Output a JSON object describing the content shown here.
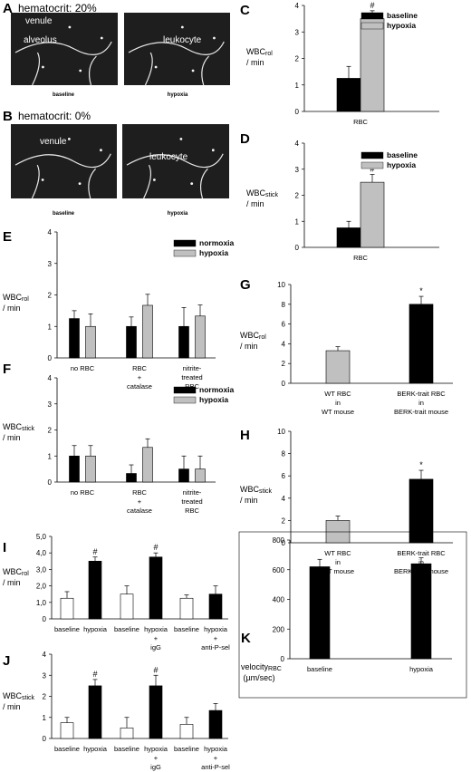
{
  "colors": {
    "black": "#000000",
    "gray": "#c0c0c0",
    "white": "#ffffff",
    "micro": "#1e1e1e"
  },
  "micrographs": [
    {
      "panel": "A",
      "title": "hematocrit: 20%",
      "images": [
        {
          "labels": [
            "venule",
            "alveolus"
          ],
          "caption": "baseline"
        },
        {
          "labels": [
            "leukocyte"
          ],
          "caption": "hypoxia"
        }
      ]
    },
    {
      "panel": "B",
      "title": "hematocrit: 0%",
      "images": [
        {
          "labels": [
            "venule"
          ],
          "caption": "baseline"
        },
        {
          "labels": [
            "leukocyte"
          ],
          "caption": "hypoxia"
        }
      ]
    }
  ],
  "chart_data": [
    {
      "panel": "C",
      "type": "bar",
      "ylabel": "WBCrol / min",
      "ylabel_main": "WBC",
      "ylabel_sub": "rol",
      "ylabel_tail": "/ min",
      "ylim": [
        0,
        4
      ],
      "yticks": [
        "0",
        "1",
        "2",
        "3",
        "4"
      ],
      "categories": [
        "RBC"
      ],
      "series": [
        {
          "name": "baseline",
          "color": "#000000",
          "values": [
            1.25
          ],
          "errors": [
            0.45
          ],
          "marks": [
            ""
          ]
        },
        {
          "name": "hypoxia",
          "color": "#c0c0c0",
          "values": [
            3.5
          ],
          "errors": [
            0.3
          ],
          "marks": [
            "#"
          ]
        }
      ],
      "legend": "top-right"
    },
    {
      "panel": "D",
      "type": "bar",
      "ylabel": "WBCstick / min",
      "ylabel_main": "WBC",
      "ylabel_sub": "stick",
      "ylabel_tail": "/ min",
      "ylim": [
        0,
        4
      ],
      "yticks": [
        "0",
        "1",
        "2",
        "3",
        "4"
      ],
      "categories": [
        "RBC"
      ],
      "series": [
        {
          "name": "baseline",
          "color": "#000000",
          "values": [
            0.75
          ],
          "errors": [
            0.25
          ],
          "marks": [
            ""
          ]
        },
        {
          "name": "hypoxia",
          "color": "#c0c0c0",
          "values": [
            2.5
          ],
          "errors": [
            0.3
          ],
          "marks": [
            "#"
          ]
        }
      ],
      "legend": "top-right"
    },
    {
      "panel": "E",
      "type": "bar",
      "ylabel": "WBCrol / min",
      "ylabel_main": "WBC",
      "ylabel_sub": "rol",
      "ylabel_tail": "/ min",
      "ylim": [
        0,
        4
      ],
      "yticks": [
        "0",
        "1",
        "2",
        "3",
        "4"
      ],
      "categories": [
        [
          "no RBC"
        ],
        [
          "RBC",
          "+",
          "catalase"
        ],
        [
          "nitrite-",
          "treated",
          "RBC"
        ]
      ],
      "series": [
        {
          "name": "normoxia",
          "color": "#000000",
          "values": [
            1.25,
            1.0,
            1.0
          ],
          "errors": [
            0.25,
            0.3,
            0.6
          ],
          "marks": [
            "",
            "",
            ""
          ]
        },
        {
          "name": "hypoxia",
          "color": "#c0c0c0",
          "values": [
            1.0,
            1.67,
            1.33
          ],
          "errors": [
            0.4,
            0.35,
            0.35
          ],
          "marks": [
            "",
            "",
            ""
          ]
        }
      ],
      "legend": "top-right"
    },
    {
      "panel": "F",
      "type": "bar",
      "ylabel": "WBCstick / min",
      "ylabel_main": "WBC",
      "ylabel_sub": "stick",
      "ylabel_tail": "/ min",
      "ylim": [
        0,
        4
      ],
      "yticks": [
        "0",
        "1",
        "2",
        "3",
        "4"
      ],
      "categories": [
        [
          "no RBC"
        ],
        [
          "RBC",
          "+",
          "catalase"
        ],
        [
          "nitrite-",
          "treated",
          "RBC"
        ]
      ],
      "series": [
        {
          "name": "normoxia",
          "color": "#000000",
          "values": [
            1.0,
            0.33,
            0.5
          ],
          "errors": [
            0.4,
            0.33,
            0.5
          ],
          "marks": [
            "",
            "",
            ""
          ]
        },
        {
          "name": "hypoxia",
          "color": "#c0c0c0",
          "values": [
            1.0,
            1.33,
            0.5
          ],
          "errors": [
            0.4,
            0.33,
            0.5
          ],
          "marks": [
            "",
            "",
            ""
          ]
        }
      ],
      "legend": "top-right"
    },
    {
      "panel": "G",
      "type": "bar",
      "ylabel": "WBCrol / min",
      "ylabel_main": "WBC",
      "ylabel_sub": "rol",
      "ylabel_tail": "/ min",
      "ylim": [
        0,
        10
      ],
      "yticks": [
        "0",
        "2",
        "4",
        "6",
        "8",
        "10"
      ],
      "categories": [
        [
          "WT RBC",
          "in",
          "WT mouse"
        ],
        [
          "BERK-trait RBC",
          "in",
          "BERK-trait mouse"
        ]
      ],
      "bars": [
        {
          "value": 3.3,
          "error": 0.4,
          "color": "#c0c0c0",
          "mark": ""
        },
        {
          "value": 8.0,
          "error": 0.8,
          "color": "#000000",
          "mark": "*"
        }
      ]
    },
    {
      "panel": "H",
      "type": "bar",
      "ylabel": "WBCstick / min",
      "ylabel_main": "WBC",
      "ylabel_sub": "stick",
      "ylabel_tail": "/ min",
      "ylim": [
        0,
        10
      ],
      "yticks": [
        "0",
        "2",
        "4",
        "6",
        "8",
        "10"
      ],
      "categories": [
        [
          "WT RBC",
          "in",
          "WT mouse"
        ],
        [
          "BERK-trait RBC",
          "in",
          "BERK-trait mouse"
        ]
      ],
      "bars": [
        {
          "value": 2.0,
          "error": 0.4,
          "color": "#c0c0c0",
          "mark": ""
        },
        {
          "value": 5.7,
          "error": 0.8,
          "color": "#000000",
          "mark": "*"
        }
      ]
    },
    {
      "panel": "I",
      "type": "bar",
      "ylabel": "WBCrol / min",
      "ylabel_main": "WBC",
      "ylabel_sub": "rol",
      "ylabel_tail": "/ min",
      "ylim": [
        0,
        5
      ],
      "yticks": [
        "0",
        "1,0",
        "2,0",
        "3,0",
        "4,0",
        "5,0"
      ],
      "categories": [
        [
          "baseline"
        ],
        [
          "hypoxia"
        ],
        [
          "baseline"
        ],
        [
          "hypoxia",
          "+",
          "igG"
        ],
        [
          "baseline"
        ],
        [
          "hypoxia",
          "+",
          "anti-P-sel"
        ]
      ],
      "bars": [
        {
          "value": 1.25,
          "error": 0.4,
          "color": "#ffffff",
          "mark": ""
        },
        {
          "value": 3.5,
          "error": 0.25,
          "color": "#000000",
          "mark": "#"
        },
        {
          "value": 1.5,
          "error": 0.5,
          "color": "#ffffff",
          "mark": ""
        },
        {
          "value": 3.75,
          "error": 0.25,
          "color": "#000000",
          "mark": "#"
        },
        {
          "value": 1.25,
          "error": 0.2,
          "color": "#ffffff",
          "mark": ""
        },
        {
          "value": 1.5,
          "error": 0.5,
          "color": "#000000",
          "mark": ""
        }
      ]
    },
    {
      "panel": "J",
      "type": "bar",
      "ylabel": "WBCstick / min",
      "ylabel_main": "WBC",
      "ylabel_sub": "stick",
      "ylabel_tail": "/ min",
      "ylim": [
        0,
        4
      ],
      "yticks": [
        "0",
        "1",
        "2",
        "3",
        "4"
      ],
      "categories": [
        [
          "baseline"
        ],
        [
          "hypoxia"
        ],
        [
          "baseline"
        ],
        [
          "hypoxia",
          "+",
          "igG"
        ],
        [
          "baseline"
        ],
        [
          "hypoxia",
          "+",
          "anti-P-sel"
        ]
      ],
      "bars": [
        {
          "value": 0.75,
          "error": 0.25,
          "color": "#ffffff",
          "mark": ""
        },
        {
          "value": 2.5,
          "error": 0.3,
          "color": "#000000",
          "mark": "#"
        },
        {
          "value": 0.5,
          "error": 0.5,
          "color": "#ffffff",
          "mark": ""
        },
        {
          "value": 2.5,
          "error": 0.5,
          "color": "#000000",
          "mark": "#"
        },
        {
          "value": 0.67,
          "error": 0.33,
          "color": "#ffffff",
          "mark": ""
        },
        {
          "value": 1.33,
          "error": 0.33,
          "color": "#000000",
          "mark": ""
        }
      ]
    },
    {
      "panel": "K",
      "type": "bar",
      "ylabel": "velocityRBC (µm/sec)",
      "ylabel_main": "velocity",
      "ylabel_sub": "RBC",
      "ylabel_tail": "(µm/sec)",
      "ylim": [
        0,
        800
      ],
      "yticks": [
        "0",
        "200",
        "400",
        "600",
        "800"
      ],
      "categories": [
        [
          "baseline"
        ],
        [
          "hypoxia"
        ]
      ],
      "bars": [
        {
          "value": 620,
          "error": 50,
          "color": "#000000",
          "mark": ""
        },
        {
          "value": 640,
          "error": 40,
          "color": "#000000",
          "mark": ""
        }
      ]
    }
  ]
}
